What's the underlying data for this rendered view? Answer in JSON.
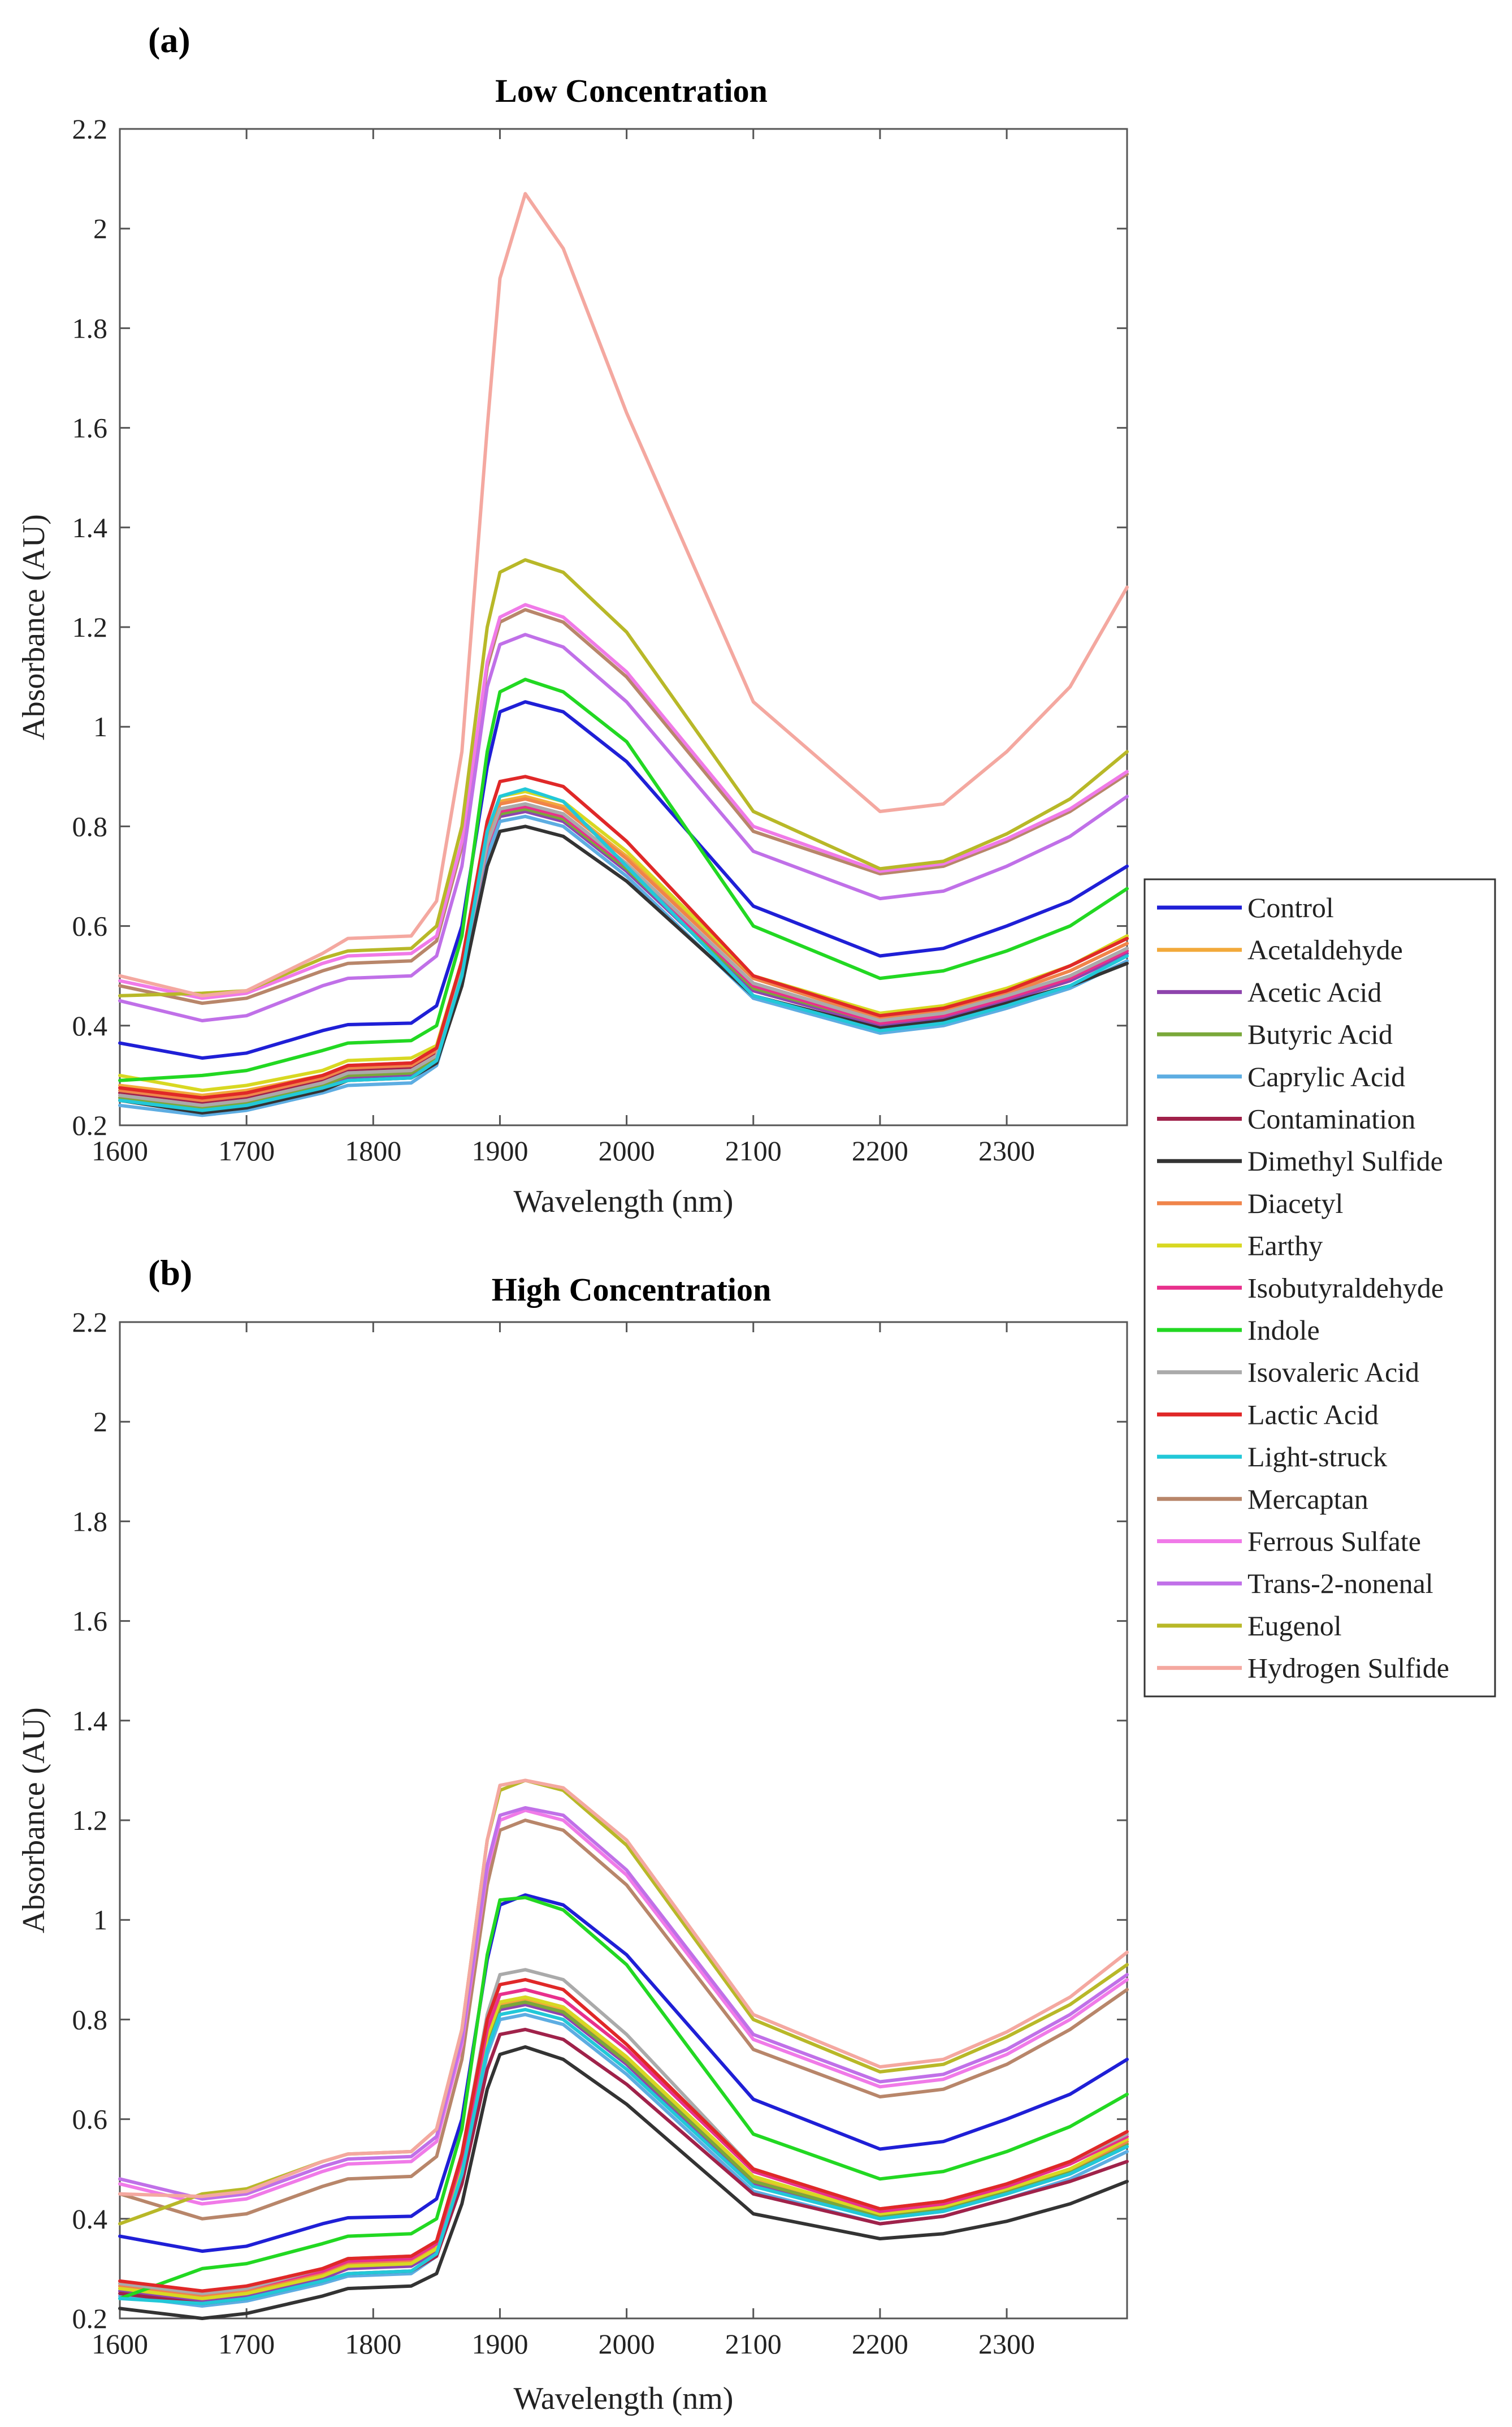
{
  "panels": [
    {
      "label": "(a)"
    },
    {
      "label": "(b)"
    }
  ],
  "legend": {
    "entries": [
      {
        "name": "Control",
        "color": "#1f1fd6"
      },
      {
        "name": "Acetaldehyde",
        "color": "#f2a93b"
      },
      {
        "name": "Acetic Acid",
        "color": "#8e44ad"
      },
      {
        "name": "Butyric Acid",
        "color": "#7aa83a"
      },
      {
        "name": "Caprylic Acid",
        "color": "#5dade2"
      },
      {
        "name": "Contamination",
        "color": "#a0224a"
      },
      {
        "name": "Dimethyl Sulfide",
        "color": "#333333"
      },
      {
        "name": "Diacetyl",
        "color": "#f0844a"
      },
      {
        "name": "Earthy",
        "color": "#d8d822"
      },
      {
        "name": "Isobutyraldehyde",
        "color": "#e8308c"
      },
      {
        "name": "Indole",
        "color": "#22d822"
      },
      {
        "name": "Isovaleric Acid",
        "color": "#aaaaaa"
      },
      {
        "name": "Lactic Acid",
        "color": "#e02828"
      },
      {
        "name": "Light-struck",
        "color": "#22c8d8"
      },
      {
        "name": "Mercaptan",
        "color": "#b8866a"
      },
      {
        "name": "Ferrous Sulfate",
        "color": "#f07ae8"
      },
      {
        "name": "Trans-2-nonenal",
        "color": "#c070e8"
      },
      {
        "name": "Eugenol",
        "color": "#b8b828"
      },
      {
        "name": "Hydrogen Sulfide",
        "color": "#f4a8a0"
      }
    ]
  },
  "chart_data": [
    {
      "type": "line",
      "title": "Low Concentration",
      "xlabel": "Wavelength (nm)",
      "ylabel": "Absorbance (AU)",
      "xlim": [
        1600,
        2395
      ],
      "ylim": [
        0.2,
        2.2
      ],
      "xticks": [
        1600,
        1700,
        1800,
        1900,
        2000,
        2100,
        2200,
        2300
      ],
      "yticks": [
        0.2,
        0.4,
        0.6,
        0.8,
        1,
        1.2,
        1.4,
        1.6,
        1.8,
        2,
        2.2
      ],
      "x": [
        1600,
        1665,
        1700,
        1760,
        1780,
        1830,
        1850,
        1870,
        1890,
        1900,
        1920,
        1950,
        2000,
        2100,
        2200,
        2250,
        2300,
        2350,
        2395
      ],
      "series": [
        {
          "name": "Control",
          "values": [
            0.365,
            0.335,
            0.345,
            0.39,
            0.402,
            0.405,
            0.44,
            0.6,
            0.92,
            1.03,
            1.05,
            1.03,
            0.93,
            0.64,
            0.54,
            0.555,
            0.6,
            0.65,
            0.72
          ]
        },
        {
          "name": "Acetaldehyde",
          "values": [
            0.28,
            0.26,
            0.27,
            0.3,
            0.32,
            0.325,
            0.35,
            0.52,
            0.78,
            0.85,
            0.86,
            0.84,
            0.74,
            0.5,
            0.42,
            0.435,
            0.47,
            0.52,
            0.575
          ]
        },
        {
          "name": "Acetic Acid",
          "values": [
            0.25,
            0.23,
            0.24,
            0.275,
            0.295,
            0.3,
            0.33,
            0.5,
            0.75,
            0.82,
            0.83,
            0.81,
            0.71,
            0.47,
            0.4,
            0.415,
            0.45,
            0.49,
            0.545
          ]
        },
        {
          "name": "Butyric Acid",
          "values": [
            0.255,
            0.235,
            0.245,
            0.28,
            0.3,
            0.305,
            0.335,
            0.505,
            0.755,
            0.825,
            0.835,
            0.815,
            0.715,
            0.475,
            0.405,
            0.42,
            0.455,
            0.495,
            0.55
          ]
        },
        {
          "name": "Caprylic Acid",
          "values": [
            0.24,
            0.22,
            0.23,
            0.265,
            0.28,
            0.285,
            0.32,
            0.49,
            0.74,
            0.81,
            0.82,
            0.8,
            0.7,
            0.455,
            0.385,
            0.4,
            0.435,
            0.475,
            0.53
          ]
        },
        {
          "name": "Contamination",
          "values": [
            0.265,
            0.245,
            0.255,
            0.29,
            0.31,
            0.315,
            0.345,
            0.515,
            0.765,
            0.835,
            0.845,
            0.825,
            0.725,
            0.485,
            0.41,
            0.425,
            0.46,
            0.5,
            0.555
          ]
        },
        {
          "name": "Dimethyl Sulfide",
          "values": [
            0.25,
            0.225,
            0.235,
            0.27,
            0.29,
            0.295,
            0.325,
            0.48,
            0.72,
            0.79,
            0.8,
            0.78,
            0.69,
            0.46,
            0.395,
            0.41,
            0.445,
            0.48,
            0.525
          ]
        },
        {
          "name": "Diacetyl",
          "values": [
            0.27,
            0.25,
            0.26,
            0.295,
            0.315,
            0.32,
            0.35,
            0.52,
            0.775,
            0.845,
            0.855,
            0.835,
            0.735,
            0.495,
            0.415,
            0.43,
            0.465,
            0.51,
            0.565
          ]
        },
        {
          "name": "Earthy",
          "values": [
            0.3,
            0.27,
            0.28,
            0.31,
            0.33,
            0.335,
            0.36,
            0.53,
            0.79,
            0.86,
            0.87,
            0.85,
            0.75,
            0.5,
            0.425,
            0.44,
            0.475,
            0.52,
            0.58
          ]
        },
        {
          "name": "Isobutyraldehyde",
          "values": [
            0.26,
            0.24,
            0.25,
            0.285,
            0.305,
            0.31,
            0.34,
            0.51,
            0.76,
            0.83,
            0.84,
            0.82,
            0.72,
            0.48,
            0.405,
            0.42,
            0.455,
            0.495,
            0.55
          ]
        },
        {
          "name": "Indole",
          "values": [
            0.29,
            0.3,
            0.31,
            0.35,
            0.365,
            0.37,
            0.4,
            0.58,
            0.95,
            1.07,
            1.095,
            1.07,
            0.97,
            0.6,
            0.495,
            0.51,
            0.55,
            0.6,
            0.675
          ]
        },
        {
          "name": "Isovaleric Acid",
          "values": [
            0.26,
            0.24,
            0.25,
            0.285,
            0.305,
            0.31,
            0.34,
            0.51,
            0.765,
            0.835,
            0.845,
            0.825,
            0.725,
            0.485,
            0.41,
            0.425,
            0.46,
            0.5,
            0.555
          ]
        },
        {
          "name": "Lactic Acid",
          "values": [
            0.275,
            0.255,
            0.265,
            0.3,
            0.32,
            0.325,
            0.355,
            0.53,
            0.81,
            0.89,
            0.9,
            0.88,
            0.77,
            0.5,
            0.42,
            0.435,
            0.47,
            0.52,
            0.575
          ]
        },
        {
          "name": "Light-struck",
          "values": [
            0.25,
            0.23,
            0.24,
            0.275,
            0.29,
            0.295,
            0.33,
            0.5,
            0.79,
            0.86,
            0.875,
            0.85,
            0.72,
            0.46,
            0.39,
            0.405,
            0.44,
            0.48,
            0.54
          ]
        },
        {
          "name": "Mercaptan",
          "values": [
            0.48,
            0.445,
            0.455,
            0.51,
            0.525,
            0.53,
            0.57,
            0.76,
            1.12,
            1.21,
            1.235,
            1.21,
            1.1,
            0.79,
            0.705,
            0.72,
            0.77,
            0.83,
            0.905
          ]
        },
        {
          "name": "Ferrous Sulfate",
          "values": [
            0.49,
            0.455,
            0.465,
            0.525,
            0.54,
            0.545,
            0.58,
            0.77,
            1.13,
            1.22,
            1.245,
            1.22,
            1.11,
            0.8,
            0.71,
            0.725,
            0.775,
            0.835,
            0.91
          ]
        },
        {
          "name": "Trans-2-nonenal",
          "values": [
            0.45,
            0.41,
            0.42,
            0.48,
            0.495,
            0.5,
            0.54,
            0.72,
            1.08,
            1.165,
            1.185,
            1.16,
            1.05,
            0.75,
            0.655,
            0.67,
            0.72,
            0.78,
            0.86
          ]
        },
        {
          "name": "Eugenol",
          "values": [
            0.46,
            0.465,
            0.47,
            0.535,
            0.55,
            0.555,
            0.6,
            0.8,
            1.2,
            1.31,
            1.335,
            1.31,
            1.19,
            0.83,
            0.715,
            0.73,
            0.785,
            0.855,
            0.95
          ]
        },
        {
          "name": "Hydrogen Sulfide",
          "values": [
            0.5,
            0.46,
            0.47,
            0.545,
            0.575,
            0.58,
            0.65,
            0.95,
            1.6,
            1.9,
            2.07,
            1.96,
            1.63,
            1.05,
            0.83,
            0.845,
            0.95,
            1.08,
            1.28
          ]
        }
      ]
    },
    {
      "type": "line",
      "title": "High Concentration",
      "xlabel": "Wavelength (nm)",
      "ylabel": "Absorbance (AU)",
      "xlim": [
        1600,
        2395
      ],
      "ylim": [
        0.2,
        2.2
      ],
      "xticks": [
        1600,
        1700,
        1800,
        1900,
        2000,
        2100,
        2200,
        2300
      ],
      "yticks": [
        0.2,
        0.4,
        0.6,
        0.8,
        1,
        1.2,
        1.4,
        1.6,
        1.8,
        2,
        2.2
      ],
      "x": [
        1600,
        1665,
        1700,
        1760,
        1780,
        1830,
        1850,
        1870,
        1890,
        1900,
        1920,
        1950,
        2000,
        2100,
        2200,
        2250,
        2300,
        2350,
        2395
      ],
      "series": [
        {
          "name": "Control",
          "values": [
            0.365,
            0.335,
            0.345,
            0.39,
            0.402,
            0.405,
            0.44,
            0.6,
            0.92,
            1.03,
            1.05,
            1.03,
            0.93,
            0.64,
            0.54,
            0.555,
            0.6,
            0.65,
            0.72
          ]
        },
        {
          "name": "Acetaldehyde",
          "values": [
            0.265,
            0.245,
            0.255,
            0.29,
            0.31,
            0.315,
            0.345,
            0.51,
            0.76,
            0.83,
            0.84,
            0.82,
            0.72,
            0.48,
            0.41,
            0.425,
            0.46,
            0.5,
            0.555
          ]
        },
        {
          "name": "Acetic Acid",
          "values": [
            0.255,
            0.235,
            0.245,
            0.28,
            0.3,
            0.305,
            0.335,
            0.5,
            0.75,
            0.82,
            0.83,
            0.81,
            0.71,
            0.47,
            0.4,
            0.415,
            0.45,
            0.49,
            0.545
          ]
        },
        {
          "name": "Butyric Acid",
          "values": [
            0.26,
            0.24,
            0.25,
            0.285,
            0.305,
            0.31,
            0.34,
            0.505,
            0.755,
            0.825,
            0.835,
            0.815,
            0.715,
            0.475,
            0.405,
            0.42,
            0.455,
            0.495,
            0.55
          ]
        },
        {
          "name": "Caprylic Acid",
          "values": [
            0.245,
            0.225,
            0.235,
            0.27,
            0.285,
            0.29,
            0.325,
            0.49,
            0.73,
            0.8,
            0.81,
            0.79,
            0.69,
            0.455,
            0.39,
            0.405,
            0.44,
            0.48,
            0.535
          ]
        },
        {
          "name": "Contamination",
          "values": [
            0.25,
            0.23,
            0.24,
            0.275,
            0.29,
            0.295,
            0.325,
            0.47,
            0.7,
            0.77,
            0.78,
            0.76,
            0.67,
            0.45,
            0.39,
            0.405,
            0.44,
            0.475,
            0.515
          ]
        },
        {
          "name": "Dimethyl Sulfide",
          "values": [
            0.22,
            0.2,
            0.21,
            0.245,
            0.26,
            0.265,
            0.29,
            0.43,
            0.66,
            0.73,
            0.745,
            0.72,
            0.63,
            0.41,
            0.36,
            0.37,
            0.395,
            0.43,
            0.475
          ]
        },
        {
          "name": "Diacetyl",
          "values": [
            0.265,
            0.245,
            0.255,
            0.29,
            0.31,
            0.315,
            0.345,
            0.51,
            0.765,
            0.835,
            0.845,
            0.825,
            0.725,
            0.485,
            0.41,
            0.425,
            0.46,
            0.5,
            0.555
          ]
        },
        {
          "name": "Earthy",
          "values": [
            0.26,
            0.24,
            0.25,
            0.285,
            0.305,
            0.31,
            0.34,
            0.51,
            0.765,
            0.835,
            0.845,
            0.825,
            0.725,
            0.485,
            0.41,
            0.425,
            0.46,
            0.5,
            0.56
          ]
        },
        {
          "name": "Isobutyraldehyde",
          "values": [
            0.27,
            0.25,
            0.26,
            0.295,
            0.315,
            0.32,
            0.35,
            0.52,
            0.78,
            0.85,
            0.86,
            0.84,
            0.74,
            0.495,
            0.415,
            0.43,
            0.465,
            0.51,
            0.565
          ]
        },
        {
          "name": "Indole",
          "values": [
            0.24,
            0.3,
            0.31,
            0.35,
            0.365,
            0.37,
            0.4,
            0.58,
            0.93,
            1.04,
            1.045,
            1.02,
            0.91,
            0.57,
            0.48,
            0.495,
            0.535,
            0.585,
            0.65
          ]
        },
        {
          "name": "Isovaleric Acid",
          "values": [
            0.27,
            0.25,
            0.26,
            0.3,
            0.32,
            0.325,
            0.355,
            0.53,
            0.81,
            0.89,
            0.9,
            0.88,
            0.77,
            0.5,
            0.42,
            0.435,
            0.47,
            0.515,
            0.57
          ]
        },
        {
          "name": "Lactic Acid",
          "values": [
            0.275,
            0.255,
            0.265,
            0.3,
            0.32,
            0.325,
            0.355,
            0.53,
            0.8,
            0.87,
            0.88,
            0.86,
            0.75,
            0.5,
            0.42,
            0.435,
            0.47,
            0.515,
            0.575
          ]
        },
        {
          "name": "Light-struck",
          "values": [
            0.24,
            0.23,
            0.24,
            0.275,
            0.29,
            0.295,
            0.33,
            0.49,
            0.74,
            0.81,
            0.82,
            0.8,
            0.7,
            0.465,
            0.4,
            0.415,
            0.45,
            0.49,
            0.545
          ]
        },
        {
          "name": "Mercaptan",
          "values": [
            0.45,
            0.4,
            0.41,
            0.465,
            0.48,
            0.485,
            0.525,
            0.72,
            1.07,
            1.18,
            1.2,
            1.18,
            1.07,
            0.74,
            0.645,
            0.66,
            0.71,
            0.78,
            0.86
          ]
        },
        {
          "name": "Ferrous Sulfate",
          "values": [
            0.47,
            0.43,
            0.44,
            0.495,
            0.51,
            0.515,
            0.555,
            0.75,
            1.1,
            1.2,
            1.22,
            1.2,
            1.09,
            0.76,
            0.665,
            0.68,
            0.73,
            0.8,
            0.88
          ]
        },
        {
          "name": "Trans-2-nonenal",
          "values": [
            0.48,
            0.44,
            0.45,
            0.505,
            0.52,
            0.525,
            0.565,
            0.76,
            1.11,
            1.21,
            1.225,
            1.21,
            1.1,
            0.77,
            0.675,
            0.69,
            0.74,
            0.81,
            0.89
          ]
        },
        {
          "name": "Eugenol",
          "values": [
            0.39,
            0.45,
            0.46,
            0.515,
            0.53,
            0.535,
            0.58,
            0.78,
            1.16,
            1.26,
            1.28,
            1.26,
            1.15,
            0.8,
            0.695,
            0.71,
            0.765,
            0.83,
            0.91
          ]
        },
        {
          "name": "Hydrogen Sulfide",
          "values": [
            0.45,
            0.445,
            0.455,
            0.515,
            0.53,
            0.535,
            0.58,
            0.78,
            1.16,
            1.27,
            1.28,
            1.265,
            1.16,
            0.81,
            0.705,
            0.72,
            0.775,
            0.845,
            0.935
          ]
        }
      ]
    }
  ]
}
